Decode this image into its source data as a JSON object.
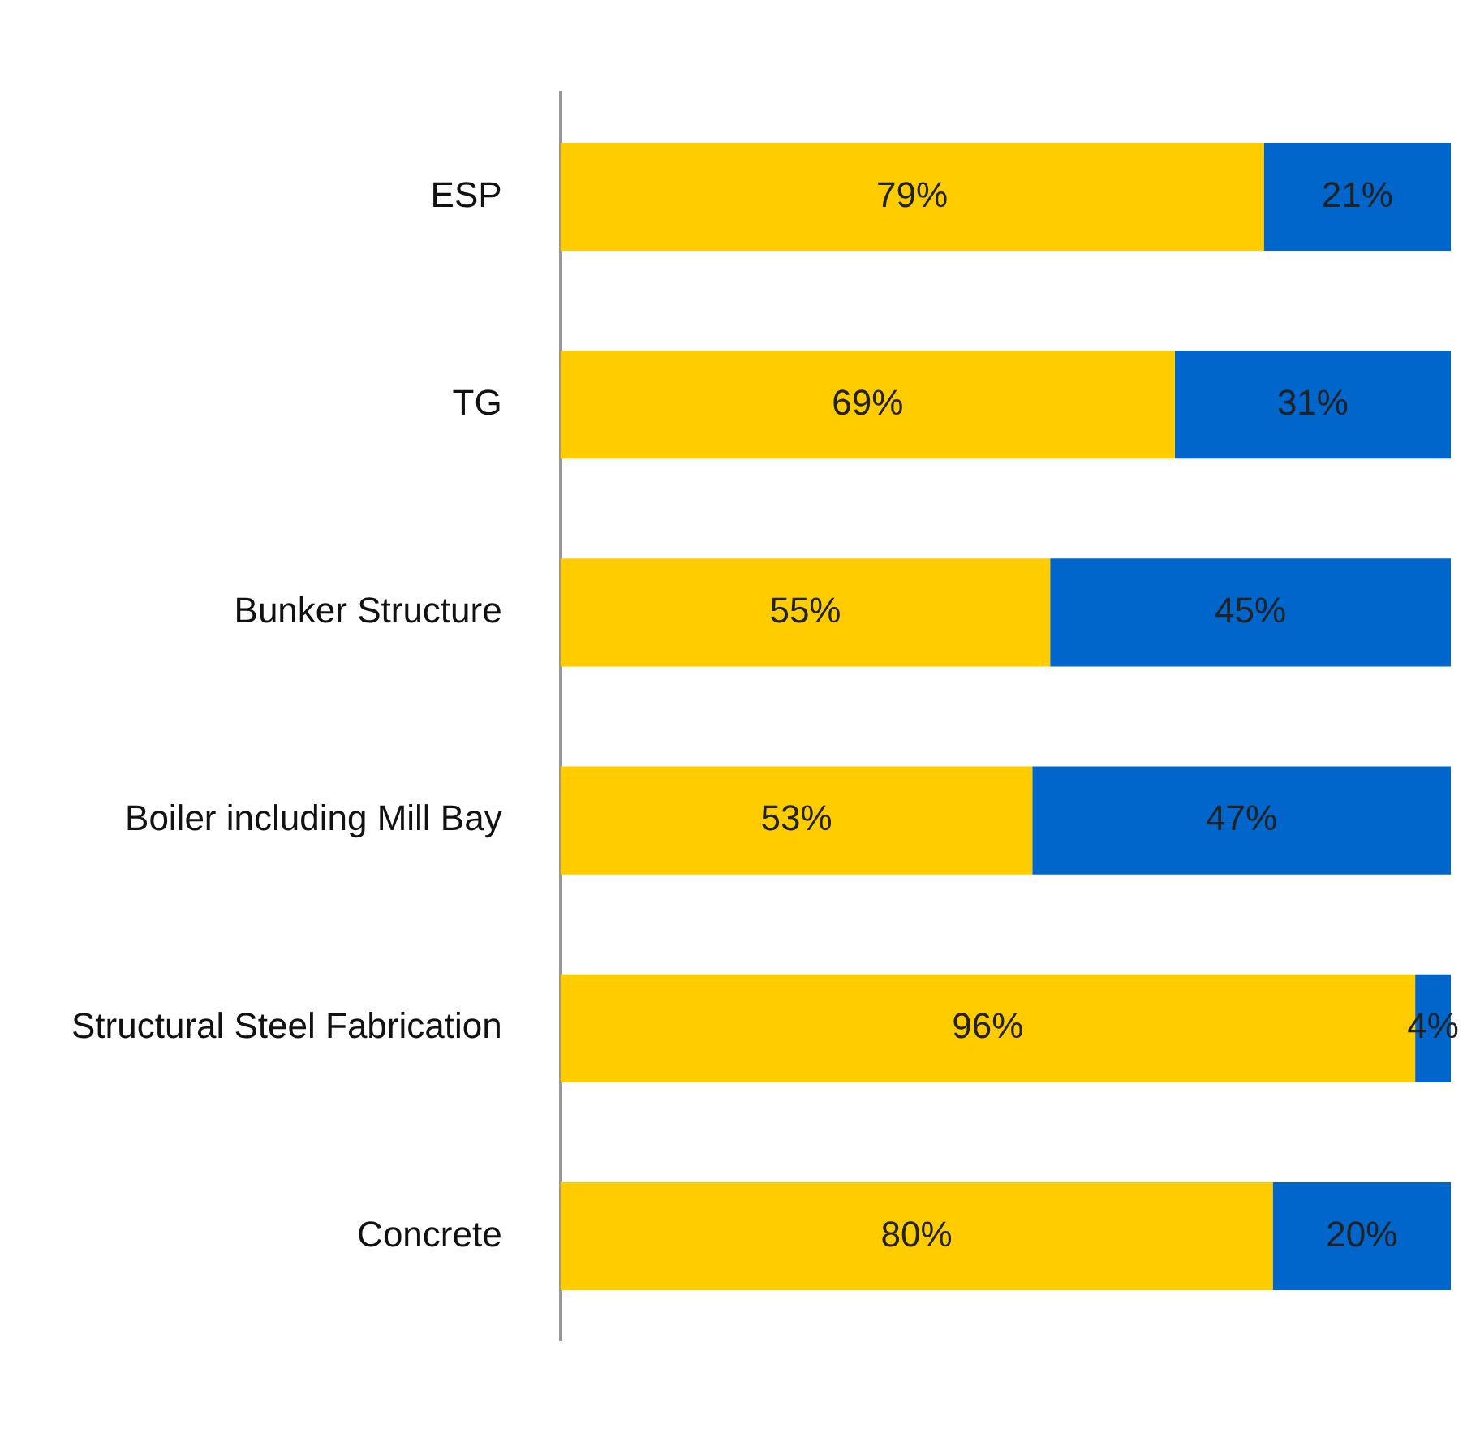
{
  "chart_data": {
    "type": "bar",
    "orientation": "horizontal",
    "stacked": true,
    "categories": [
      "ESP",
      "TG",
      "Bunker Structure",
      "Boiler including Mill Bay",
      "Structural Steel Fabrication",
      "Concrete"
    ],
    "series": [
      {
        "color": "#ffcc00",
        "values": [
          79,
          69,
          55,
          53,
          96,
          80
        ],
        "value_labels": [
          "79%",
          "69%",
          "55%",
          "53%",
          "96%",
          "80%"
        ]
      },
      {
        "color": "#0066cc",
        "values": [
          21,
          31,
          45,
          47,
          4,
          20
        ],
        "value_labels": [
          "21%",
          "31%",
          "45%",
          "47%",
          "4%",
          "20%"
        ]
      }
    ],
    "xlim": [
      0,
      100
    ],
    "tick_labels": "y",
    "legend": false
  }
}
